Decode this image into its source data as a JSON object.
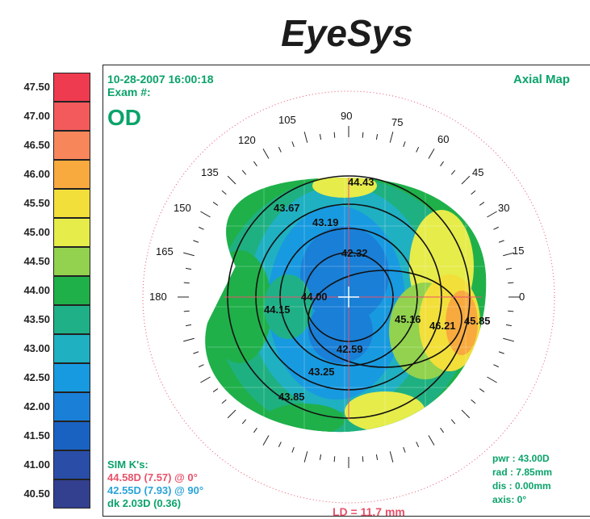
{
  "brand": "EyeSys",
  "scale": [
    {
      "label": "47.50",
      "color": "#ef3b4f"
    },
    {
      "label": "47.00",
      "color": "#f25a5c"
    },
    {
      "label": "46.50",
      "color": "#f7875b"
    },
    {
      "label": "46.00",
      "color": "#f8aa3e"
    },
    {
      "label": "45.50",
      "color": "#f2df3a"
    },
    {
      "label": "45.00",
      "color": "#e6ec4a"
    },
    {
      "label": "44.50",
      "color": "#92d24e"
    },
    {
      "label": "44.00",
      "color": "#1fb04a"
    },
    {
      "label": "43.50",
      "color": "#1fb087"
    },
    {
      "label": "43.00",
      "color": "#1fb0c2"
    },
    {
      "label": "42.50",
      "color": "#189ae0"
    },
    {
      "label": "42.00",
      "color": "#1a7fd7"
    },
    {
      "label": "41.50",
      "color": "#1a62c2"
    },
    {
      "label": "41.00",
      "color": "#2a4ea8"
    },
    {
      "label": "40.50",
      "color": "#33408f"
    }
  ],
  "header": {
    "datetime": "10-28-2007 16:00:18",
    "exam": "Exam #:",
    "eye": "OD",
    "map_type": "Axial Map"
  },
  "axis_ticks": [
    "105",
    "90",
    "75",
    "60",
    "45",
    "30",
    "15",
    "0",
    "120",
    "135",
    "150",
    "165",
    "180"
  ],
  "readings": [
    "44.43",
    "43.67",
    "43.19",
    "42.32",
    "44.00",
    "44.15",
    "45.16",
    "46.21",
    "45.85",
    "42.59",
    "43.25",
    "43.85"
  ],
  "simk": {
    "title": "SIM K's:",
    "line1": "44.58D (7.57) @  0°",
    "line2": "42.55D (7.93) @ 90°",
    "line3": "dk  2.03D (0.36)"
  },
  "ld": "LD = 11.7 mm",
  "params": {
    "pwr": "pwr : 43.00D",
    "rad": "rad : 7.85mm",
    "dis": "dis : 0.00mm",
    "axis": "axis:  0°"
  },
  "colors": {
    "accent_green": "#0aa36a",
    "pink": "#e8536b",
    "cyan": "#2aa3d8"
  }
}
